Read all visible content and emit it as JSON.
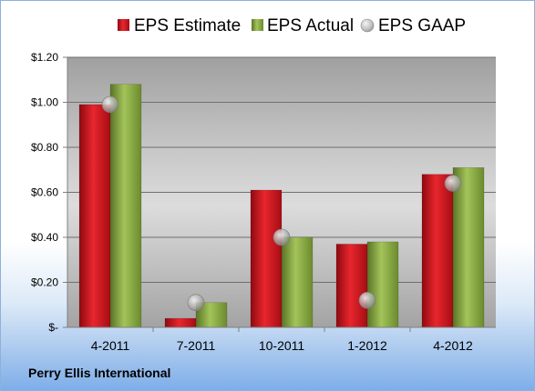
{
  "company": "Perry Ellis International",
  "chart_data": {
    "type": "bar",
    "categories": [
      "4-2011",
      "7-2011",
      "10-2011",
      "1-2012",
      "4-2012"
    ],
    "series": [
      {
        "name": "EPS Estimate",
        "kind": "bar",
        "color": "#c8141c",
        "values": [
          0.99,
          0.04,
          0.61,
          0.37,
          0.68
        ]
      },
      {
        "name": "EPS Actual",
        "kind": "bar",
        "color": "#82a33c",
        "values": [
          1.08,
          0.11,
          0.4,
          0.38,
          0.71
        ]
      },
      {
        "name": "EPS GAAP",
        "kind": "marker",
        "color": "#b0b0b0",
        "values": [
          0.99,
          0.11,
          0.4,
          0.12,
          0.64
        ]
      }
    ],
    "ylim": [
      0,
      1.2
    ],
    "y_ticks": [
      {
        "value": 0,
        "label": "$-"
      },
      {
        "value": 0.2,
        "label": "$0.20"
      },
      {
        "value": 0.4,
        "label": "$0.40"
      },
      {
        "value": 0.6,
        "label": "$0.60"
      },
      {
        "value": 0.8,
        "label": "$0.80"
      },
      {
        "value": 1.0,
        "label": "$1.00"
      },
      {
        "value": 1.2,
        "label": "$1.20"
      }
    ],
    "grid": true,
    "legend_position": "top"
  }
}
